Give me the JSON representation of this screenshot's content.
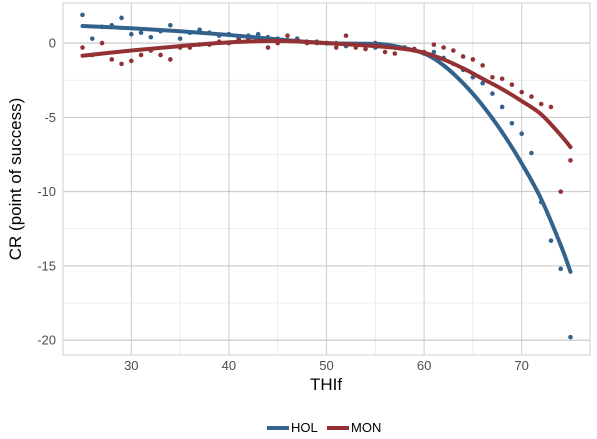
{
  "chart_data": {
    "type": "scatter",
    "xlabel": "THIf",
    "ylabel": "CR (point of success)",
    "xlim": [
      23,
      77
    ],
    "ylim": [
      -21,
      2.7
    ],
    "x_ticks": [
      30,
      40,
      50,
      60,
      70
    ],
    "y_ticks": [
      0,
      -5,
      -10,
      -15,
      -20
    ],
    "grid": true,
    "legend_placement": "bottom",
    "series": [
      {
        "name": "HOL",
        "color": "#33638d",
        "points": [
          [
            25,
            1.9
          ],
          [
            26,
            0.3
          ],
          [
            27,
            1.1
          ],
          [
            28,
            1.2
          ],
          [
            29,
            1.7
          ],
          [
            30,
            0.6
          ],
          [
            31,
            0.7
          ],
          [
            32,
            0.4
          ],
          [
            33,
            0.8
          ],
          [
            34,
            1.2
          ],
          [
            35,
            0.3
          ],
          [
            36,
            0.7
          ],
          [
            37,
            0.9
          ],
          [
            38,
            0.7
          ],
          [
            39,
            0.5
          ],
          [
            40,
            0.6
          ],
          [
            41,
            0.3
          ],
          [
            42,
            0.5
          ],
          [
            43,
            0.6
          ],
          [
            44,
            0.4
          ],
          [
            45,
            0.3
          ],
          [
            46,
            0.2
          ],
          [
            47,
            0.3
          ],
          [
            48,
            0.1
          ],
          [
            49,
            0.1
          ],
          [
            50,
            0.0
          ],
          [
            51,
            0.0
          ],
          [
            52,
            -0.2
          ],
          [
            53,
            -0.1
          ],
          [
            54,
            -0.1
          ],
          [
            55,
            -0.3
          ],
          [
            56,
            -0.2
          ],
          [
            57,
            -0.3
          ],
          [
            58,
            -0.3
          ],
          [
            59,
            -0.4
          ],
          [
            60,
            -0.7
          ],
          [
            61,
            -0.6
          ],
          [
            62,
            -1.0
          ],
          [
            63,
            -1.4
          ],
          [
            64,
            -1.8
          ],
          [
            65,
            -2.3
          ],
          [
            66,
            -2.7
          ],
          [
            67,
            -3.4
          ],
          [
            68,
            -4.3
          ],
          [
            69,
            -5.4
          ],
          [
            70,
            -6.1
          ],
          [
            71,
            -7.4
          ],
          [
            72,
            -10.7
          ],
          [
            73,
            -13.3
          ],
          [
            74,
            -15.2
          ],
          [
            75,
            -19.8
          ]
        ],
        "trend": [
          [
            25,
            1.15
          ],
          [
            30,
            1.0
          ],
          [
            35,
            0.8
          ],
          [
            40,
            0.55
          ],
          [
            45,
            0.25
          ],
          [
            50,
            0.0
          ],
          [
            55,
            -0.05
          ],
          [
            57,
            -0.2
          ],
          [
            60,
            -0.7
          ],
          [
            62,
            -1.5
          ],
          [
            64,
            -2.7
          ],
          [
            66,
            -4.2
          ],
          [
            68,
            -6.0
          ],
          [
            70,
            -8.1
          ],
          [
            72,
            -10.5
          ],
          [
            74,
            -13.6
          ],
          [
            75,
            -15.4
          ]
        ]
      },
      {
        "name": "MON",
        "color": "#933134",
        "points": [
          [
            25,
            -0.3
          ],
          [
            26,
            -0.8
          ],
          [
            27,
            0.0
          ],
          [
            28,
            -1.1
          ],
          [
            29,
            -1.4
          ],
          [
            30,
            -1.2
          ],
          [
            31,
            -0.8
          ],
          [
            32,
            -0.5
          ],
          [
            33,
            -0.8
          ],
          [
            34,
            -1.1
          ],
          [
            35,
            -0.3
          ],
          [
            36,
            -0.3
          ],
          [
            37,
            -0.1
          ],
          [
            38,
            -0.1
          ],
          [
            39,
            0.1
          ],
          [
            40,
            0.0
          ],
          [
            41,
            0.2
          ],
          [
            42,
            0.3
          ],
          [
            43,
            0.3
          ],
          [
            44,
            -0.3
          ],
          [
            45,
            0.0
          ],
          [
            46,
            0.5
          ],
          [
            47,
            0.2
          ],
          [
            48,
            0.0
          ],
          [
            49,
            0.0
          ],
          [
            50,
            0.0
          ],
          [
            51,
            -0.3
          ],
          [
            52,
            0.5
          ],
          [
            53,
            -0.3
          ],
          [
            54,
            -0.4
          ],
          [
            55,
            0.0
          ],
          [
            56,
            -0.6
          ],
          [
            57,
            -0.7
          ],
          [
            58,
            -0.3
          ],
          [
            59,
            -0.4
          ],
          [
            60,
            -0.6
          ],
          [
            61,
            -0.1
          ],
          [
            62,
            -0.3
          ],
          [
            63,
            -0.5
          ],
          [
            64,
            -0.9
          ],
          [
            65,
            -1.1
          ],
          [
            66,
            -1.5
          ],
          [
            67,
            -2.3
          ],
          [
            68,
            -2.4
          ],
          [
            69,
            -2.8
          ],
          [
            70,
            -3.3
          ],
          [
            71,
            -3.6
          ],
          [
            72,
            -4.1
          ],
          [
            73,
            -4.3
          ],
          [
            74,
            -10.0
          ],
          [
            75,
            -7.9
          ]
        ],
        "trend": [
          [
            25,
            -0.85
          ],
          [
            30,
            -0.5
          ],
          [
            35,
            -0.2
          ],
          [
            40,
            0.05
          ],
          [
            45,
            0.15
          ],
          [
            50,
            0.0
          ],
          [
            55,
            -0.2
          ],
          [
            58,
            -0.4
          ],
          [
            60,
            -0.65
          ],
          [
            62,
            -1.1
          ],
          [
            64,
            -1.7
          ],
          [
            66,
            -2.4
          ],
          [
            68,
            -3.1
          ],
          [
            70,
            -3.9
          ],
          [
            72,
            -4.8
          ],
          [
            74,
            -6.2
          ],
          [
            75,
            -7.0
          ]
        ]
      }
    ]
  }
}
